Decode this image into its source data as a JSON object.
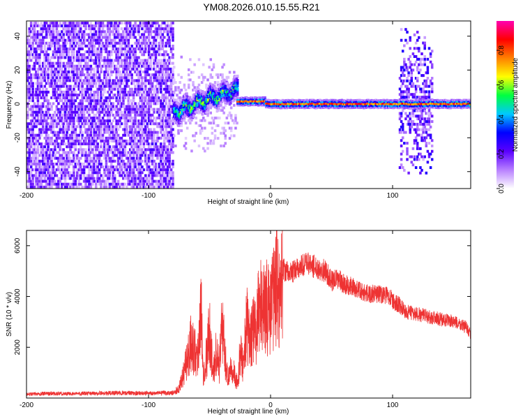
{
  "page": {
    "title": "YM08.2026.010.15.55.R21"
  },
  "chart_data": [
    {
      "type": "heatmap",
      "title": "YM08.2026.010.15.55.R21",
      "xlabel": "Height of straight line (km)",
      "ylabel": "Frequency (Hz)",
      "xlim": [
        -200,
        164
      ],
      "ylim": [
        -50,
        49
      ],
      "x_ticks": [
        -200,
        -100,
        0,
        100
      ],
      "y_ticks": [
        -40,
        -20,
        0,
        20,
        40
      ],
      "x_tick_labels": [
        "-200",
        "-100",
        "0",
        "100"
      ],
      "y_tick_labels": [
        "-40",
        "-20",
        "0",
        "20",
        "40"
      ],
      "grid": false,
      "colorbar": {
        "label": "Normalized spectral amplitude",
        "range": [
          0.0,
          0.97
        ],
        "ticks": [
          0.0,
          0.2,
          0.4,
          0.6,
          0.8
        ],
        "tick_labels": [
          "0.0",
          "0.2",
          "0.4",
          "0.6",
          "0.8"
        ],
        "colormap": [
          "#ffffff",
          "#b880ff",
          "#5a00ff",
          "#0000ff",
          "#00c8ff",
          "#00ff40",
          "#ffff00",
          "#ff8000",
          "#ff0000",
          "#ff00b0"
        ]
      },
      "regions": [
        {
          "name": "noise",
          "x": [
            -200,
            -80
          ],
          "f": [
            -50,
            49
          ],
          "amplitude": 0.15
        },
        {
          "name": "sparse",
          "x": [
            -80,
            -28
          ],
          "f": [
            -30,
            30
          ],
          "amplitude": 0.08
        },
        {
          "name": "echo-rise",
          "x": [
            -80,
            -28
          ],
          "f_start": -4,
          "f_end": 10,
          "amplitude": 0.45
        },
        {
          "name": "echo-level",
          "x": [
            -28,
            164
          ],
          "f": 0.5,
          "amplitude": 0.85
        },
        {
          "name": "noise-band",
          "x": [
            105,
            132
          ],
          "f": [
            -40,
            45
          ],
          "amplitude": 0.15
        }
      ]
    },
    {
      "type": "line",
      "xlabel": "Height of straight line (km)",
      "ylabel": "SNR (10 * v/v)",
      "xlim": [
        -200,
        164
      ],
      "ylim": [
        0,
        6600
      ],
      "x_ticks": [
        -200,
        -100,
        0,
        100
      ],
      "y_ticks": [
        2000,
        4000,
        6000
      ],
      "x_tick_labels": [
        "-200",
        "-100",
        "0",
        "100"
      ],
      "y_tick_labels": [
        "2000",
        "4000",
        "6000"
      ],
      "grid": false,
      "series_color": "#ee3333",
      "series": [
        {
          "x": [
            -200,
            -180,
            -160,
            -140,
            -120,
            -100,
            -80,
            -75,
            -70,
            -65,
            -60,
            -57,
            -55,
            -52,
            -50,
            -47,
            -45,
            -42,
            -40,
            -37,
            -35,
            -32,
            -30,
            -27,
            -25,
            -22,
            -20,
            -17,
            -15,
            -12,
            -10,
            -7,
            -5,
            -2,
            0,
            3,
            5,
            8,
            10,
            15,
            20,
            25,
            30,
            35,
            40,
            45,
            50,
            55,
            60,
            70,
            80,
            90,
            98,
            100,
            105,
            110,
            120,
            130,
            140,
            150,
            160,
            164
          ],
          "y": [
            150,
            180,
            170,
            190,
            200,
            190,
            200,
            350,
            1200,
            2200,
            1600,
            3500,
            1000,
            1800,
            2800,
            800,
            1900,
            1200,
            3000,
            1500,
            800,
            1400,
            1000,
            500,
            1700,
            1300,
            3000,
            2200,
            2800,
            2500,
            3300,
            4000,
            3300,
            3700,
            3500,
            4200,
            4500,
            4000,
            5100,
            4900,
            5000,
            5200,
            5300,
            5200,
            5100,
            5000,
            4600,
            4700,
            4500,
            4300,
            4100,
            4100,
            4000,
            3800,
            3700,
            3400,
            3300,
            3200,
            3100,
            3000,
            2800,
            2500
          ]
        }
      ]
    }
  ]
}
